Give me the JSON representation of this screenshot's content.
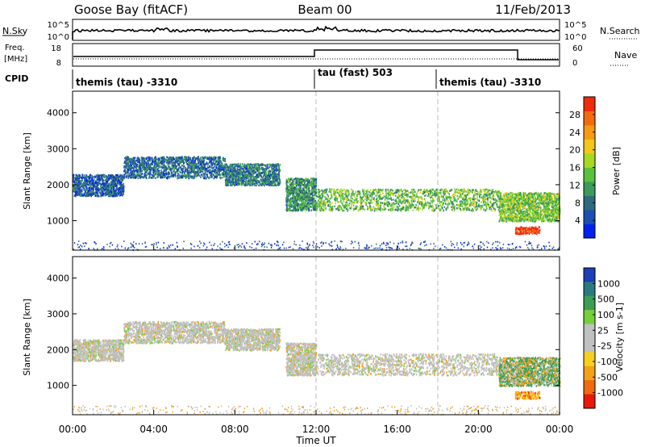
{
  "header": {
    "station": "Goose Bay (fitACF)",
    "beam": "Beam 00",
    "date": "11/Feb/2013"
  },
  "strip_nsky": {
    "left_label": "N.Sky",
    "right_label": "N.Search",
    "tick_top": "10^5",
    "tick_bottom": "10^0",
    "right_tick_top": "10^5",
    "right_tick_bottom": "10^0"
  },
  "strip_freq": {
    "left_label_1": "Freq.",
    "left_label_2": "[MHz]",
    "tick_top": "18",
    "tick_bottom": "8",
    "right_label": "Nave",
    "right_tick_top": "60",
    "right_tick_bottom": "0"
  },
  "cpid": {
    "label": "CPID",
    "segments": [
      {
        "text": "themis (tau) -3310",
        "start_hour": 0
      },
      {
        "text": "tau (fast) 503",
        "start_hour": 12
      },
      {
        "text": "themis (tau) -3310",
        "start_hour": 18
      }
    ]
  },
  "time_axis": {
    "label": "Time UT",
    "ticks": [
      "00:00",
      "04:00",
      "08:00",
      "12:00",
      "16:00",
      "20:00",
      "00:00"
    ]
  },
  "chart_data": [
    {
      "type": "heatmap",
      "title": "",
      "ylabel": "Slant Range [km]",
      "xlabel": "",
      "xlim_hours": [
        0,
        24
      ],
      "ylim": [
        180,
        4600
      ],
      "yticks": [
        "1000",
        "2000",
        "3000",
        "4000"
      ],
      "colorbar": {
        "label": "Power [dB]",
        "ticks": [
          "4",
          "8",
          "12",
          "16",
          "20",
          "24",
          "28"
        ],
        "colors": [
          "#0022ee",
          "#1d4fb0",
          "#2f6b7a",
          "#3b9a5c",
          "#58c23d",
          "#a7d922",
          "#f2c71a",
          "#f59b13",
          "#f36a10",
          "#ee2a0b"
        ]
      },
      "regions": [
        {
          "x": [
            0,
            2.5
          ],
          "y": [
            1700,
            2300
          ],
          "dominant_value": 6
        },
        {
          "x": [
            2.5,
            7.5
          ],
          "y": [
            2200,
            2800
          ],
          "dominant_value": 7
        },
        {
          "x": [
            7.5,
            10.2
          ],
          "y": [
            2000,
            2600
          ],
          "dominant_value": 8
        },
        {
          "x": [
            10.5,
            12
          ],
          "y": [
            1300,
            2200
          ],
          "dominant_value": 10
        },
        {
          "x": [
            12,
            21
          ],
          "y": [
            1300,
            1900
          ],
          "dominant_value": 13
        },
        {
          "x": [
            21,
            24
          ],
          "y": [
            1000,
            1800
          ],
          "dominant_value": 14
        },
        {
          "x": [
            21.8,
            23
          ],
          "y": [
            650,
            850
          ],
          "dominant_value": 28
        }
      ]
    },
    {
      "type": "heatmap",
      "title": "",
      "ylabel": "Slant Range [km]",
      "xlabel": "Time UT",
      "xlim_hours": [
        0,
        24
      ],
      "ylim": [
        180,
        4600
      ],
      "yticks": [
        "1000",
        "2000",
        "3000",
        "4000"
      ],
      "colorbar": {
        "label": "Velocity [m s-1]",
        "ticks": [
          "1000",
          "500",
          "100",
          "25",
          "-25",
          "-100",
          "-500",
          "-1000"
        ],
        "colors": [
          "#1b3fb4",
          "#2c7a80",
          "#3c9e52",
          "#77cf3a",
          "#c0c0c0",
          "#c0c0c0",
          "#f7d01d",
          "#f5a117",
          "#f06a10",
          "#e8190a"
        ]
      },
      "regions": [
        {
          "x": [
            0,
            2.5
          ],
          "y": [
            1700,
            2300
          ],
          "dominant_value": 0
        },
        {
          "x": [
            2.5,
            7.5
          ],
          "y": [
            2200,
            2800
          ],
          "dominant_value": 0
        },
        {
          "x": [
            7.5,
            10.2
          ],
          "y": [
            2000,
            2600
          ],
          "dominant_value": 0
        },
        {
          "x": [
            10.5,
            12
          ],
          "y": [
            1300,
            2200
          ],
          "dominant_value": 0
        },
        {
          "x": [
            12,
            21
          ],
          "y": [
            1300,
            1900
          ],
          "dominant_value": 0
        },
        {
          "x": [
            21,
            24
          ],
          "y": [
            1000,
            1800
          ],
          "dominant_value": 100
        },
        {
          "x": [
            21.8,
            23
          ],
          "y": [
            650,
            850
          ],
          "dominant_value": -200
        }
      ]
    }
  ]
}
